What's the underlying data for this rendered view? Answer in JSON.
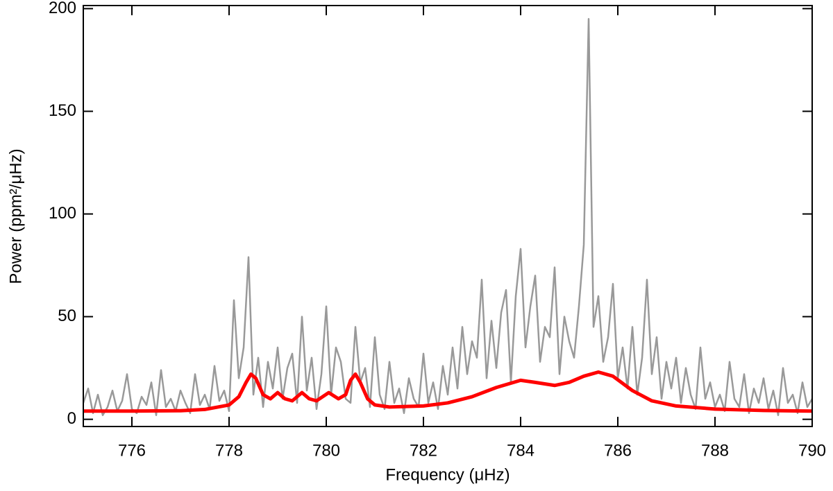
{
  "chart_data": {
    "type": "line",
    "xlabel": "Frequency (μHz)",
    "ylabel": "Power (ppm²/μHz)",
    "xlim": [
      775,
      790
    ],
    "ylim": [
      -3.5,
      201.5
    ],
    "xticks": [
      776,
      778,
      780,
      782,
      784,
      786,
      788,
      790
    ],
    "yticks": [
      0,
      50,
      100,
      150,
      200
    ],
    "series": [
      {
        "color": "#999999",
        "width": 2.5,
        "x": [
          775.0,
          775.1,
          775.2,
          775.3,
          775.4,
          775.5,
          775.6,
          775.7,
          775.8,
          775.9,
          776.0,
          776.1,
          776.2,
          776.3,
          776.4,
          776.5,
          776.6,
          776.7,
          776.8,
          776.9,
          777.0,
          777.1,
          777.2,
          777.3,
          777.4,
          777.5,
          777.6,
          777.7,
          777.8,
          777.9,
          778.0,
          778.1,
          778.2,
          778.3,
          778.4,
          778.5,
          778.6,
          778.7,
          778.8,
          778.9,
          779.0,
          779.1,
          779.2,
          779.3,
          779.4,
          779.5,
          779.6,
          779.7,
          779.8,
          779.9,
          780.0,
          780.1,
          780.2,
          780.3,
          780.4,
          780.5,
          780.6,
          780.7,
          780.8,
          780.9,
          781.0,
          781.1,
          781.2,
          781.3,
          781.4,
          781.5,
          781.6,
          781.7,
          781.8,
          781.9,
          782.0,
          782.1,
          782.2,
          782.3,
          782.4,
          782.5,
          782.6,
          782.7,
          782.8,
          782.9,
          783.0,
          783.1,
          783.2,
          783.3,
          783.4,
          783.5,
          783.6,
          783.7,
          783.8,
          783.9,
          784.0,
          784.1,
          784.2,
          784.3,
          784.4,
          784.5,
          784.6,
          784.7,
          784.8,
          784.9,
          785.0,
          785.1,
          785.2,
          785.3,
          785.4,
          785.5,
          785.6,
          785.7,
          785.8,
          785.9,
          786.0,
          786.1,
          786.2,
          786.3,
          786.4,
          786.5,
          786.6,
          786.7,
          786.8,
          786.9,
          787.0,
          787.1,
          787.2,
          787.3,
          787.4,
          787.5,
          787.6,
          787.7,
          787.8,
          787.9,
          788.0,
          788.1,
          788.2,
          788.3,
          788.4,
          788.5,
          788.6,
          788.7,
          788.8,
          788.9,
          789.0,
          789.1,
          789.2,
          789.3,
          789.4,
          789.5,
          789.6,
          789.7,
          789.8,
          789.9,
          790.0
        ],
        "values": [
          8,
          15,
          3,
          12,
          2,
          6,
          14,
          4,
          9,
          22,
          5,
          3,
          11,
          7,
          18,
          2,
          24,
          6,
          10,
          4,
          14,
          8,
          3,
          22,
          7,
          12,
          5,
          26,
          9,
          14,
          4,
          58,
          20,
          35,
          79,
          12,
          30,
          6,
          28,
          15,
          35,
          10,
          25,
          32,
          8,
          50,
          14,
          30,
          5,
          22,
          55,
          12,
          35,
          28,
          10,
          8,
          45,
          18,
          25,
          6,
          40,
          12,
          5,
          28,
          8,
          15,
          3,
          20,
          10,
          6,
          32,
          8,
          18,
          5,
          26,
          12,
          35,
          15,
          45,
          22,
          38,
          30,
          68,
          20,
          48,
          25,
          52,
          63,
          18,
          60,
          83,
          35,
          55,
          70,
          28,
          45,
          40,
          74,
          22,
          50,
          38,
          30,
          55,
          85,
          195,
          45,
          60,
          28,
          40,
          66,
          20,
          35,
          15,
          45,
          12,
          30,
          68,
          22,
          40,
          10,
          28,
          15,
          30,
          8,
          25,
          12,
          5,
          35,
          10,
          18,
          6,
          12,
          4,
          28,
          10,
          6,
          22,
          3,
          15,
          8,
          20,
          5,
          14,
          2,
          25,
          8,
          12,
          3,
          18,
          6,
          10
        ]
      },
      {
        "color": "#ff0000",
        "width": 5,
        "x": [
          775,
          776,
          777,
          777.5,
          778,
          778.2,
          778.35,
          778.45,
          778.55,
          778.7,
          778.85,
          779.0,
          779.15,
          779.3,
          779.5,
          779.65,
          779.8,
          780.05,
          780.25,
          780.4,
          780.5,
          780.6,
          780.7,
          780.85,
          781.0,
          781.3,
          782,
          782.5,
          783,
          783.5,
          784,
          784.3,
          784.7,
          785,
          785.3,
          785.6,
          785.9,
          786.3,
          786.7,
          787.2,
          788,
          789,
          790
        ],
        "values": [
          4,
          4,
          4.2,
          4.8,
          7,
          11,
          18,
          22,
          20,
          12,
          10,
          13,
          10,
          9,
          13,
          10,
          9,
          13,
          10,
          12,
          19,
          22,
          18,
          10,
          7,
          6,
          6.5,
          8,
          11,
          15.5,
          19,
          18,
          16.5,
          18,
          21,
          23,
          21,
          14,
          9,
          6.5,
          5,
          4.3,
          4
        ]
      }
    ]
  }
}
